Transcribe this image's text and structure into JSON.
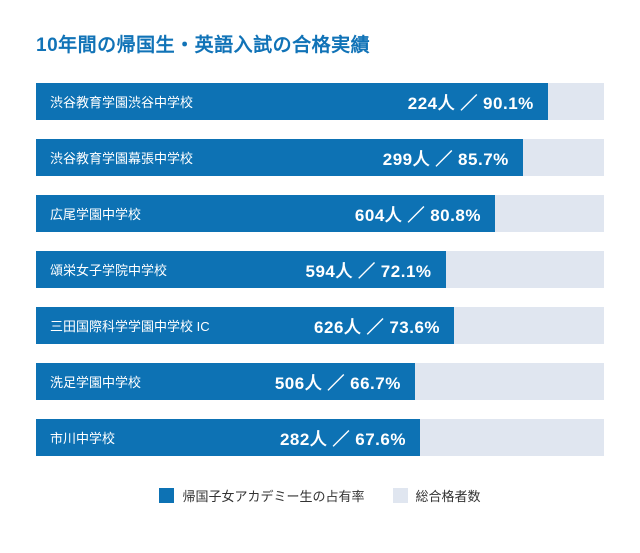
{
  "title": "10年間の帰国生・英語入試の合格実績",
  "colors": {
    "title_text": "#1173b7",
    "bar_fill": "#0d72b4",
    "bar_track": "#e0e6f0",
    "bar_text": "#ffffff",
    "legend_text": "#333333",
    "background": "#ffffff"
  },
  "chart_data": {
    "type": "bar",
    "orientation": "horizontal",
    "title": "10年間の帰国生・英語入試の合格実績",
    "categories": [
      "渋谷教育学園渋谷中学校",
      "渋谷教育学園幕張中学校",
      "広尾学園中学校",
      "頌栄女子学院中学校",
      "三田国際科学学園中学校 IC",
      "洗足学園中学校",
      "市川中学校"
    ],
    "series": [
      {
        "name": "帰国子女アカデミー生の占有率 (%)",
        "values": [
          90.1,
          85.7,
          80.8,
          72.1,
          73.6,
          66.7,
          67.6
        ]
      },
      {
        "name": "総合格者数 (人)",
        "values": [
          224,
          299,
          604,
          594,
          626,
          506,
          282
        ]
      }
    ],
    "data_labels": [
      "224人 ／ 90.1%",
      "299人 ／ 85.7%",
      "604人 ／ 80.8%",
      "594人 ／ 72.1%",
      "626人 ／ 73.6%",
      "506人 ／ 66.7%",
      "282人 ／ 67.6%"
    ],
    "xlim": [
      0,
      100
    ],
    "grid": false,
    "legend_position": "bottom",
    "legend": [
      "帰国子女アカデミー生の占有率",
      "総合格者数"
    ]
  },
  "rows": [
    {
      "school": "渋谷教育学園渋谷中学校",
      "label": "224人 ／ 90.1%",
      "percent": 90.1
    },
    {
      "school": "渋谷教育学園幕張中学校",
      "label": "299人 ／ 85.7%",
      "percent": 85.7
    },
    {
      "school": "広尾学園中学校",
      "label": "604人 ／ 80.8%",
      "percent": 80.8
    },
    {
      "school": "頌栄女子学院中学校",
      "label": "594人 ／ 72.1%",
      "percent": 72.1
    },
    {
      "school": "三田国際科学学園中学校 IC",
      "label": "626人 ／ 73.6%",
      "percent": 73.6
    },
    {
      "school": "洗足学園中学校",
      "label": "506人 ／ 66.7%",
      "percent": 66.7
    },
    {
      "school": "市川中学校",
      "label": "282人 ／ 67.6%",
      "percent": 67.6
    }
  ],
  "legend": {
    "occupancy_label": "帰国子女アカデミー生の占有率",
    "total_label": "総合格者数"
  }
}
